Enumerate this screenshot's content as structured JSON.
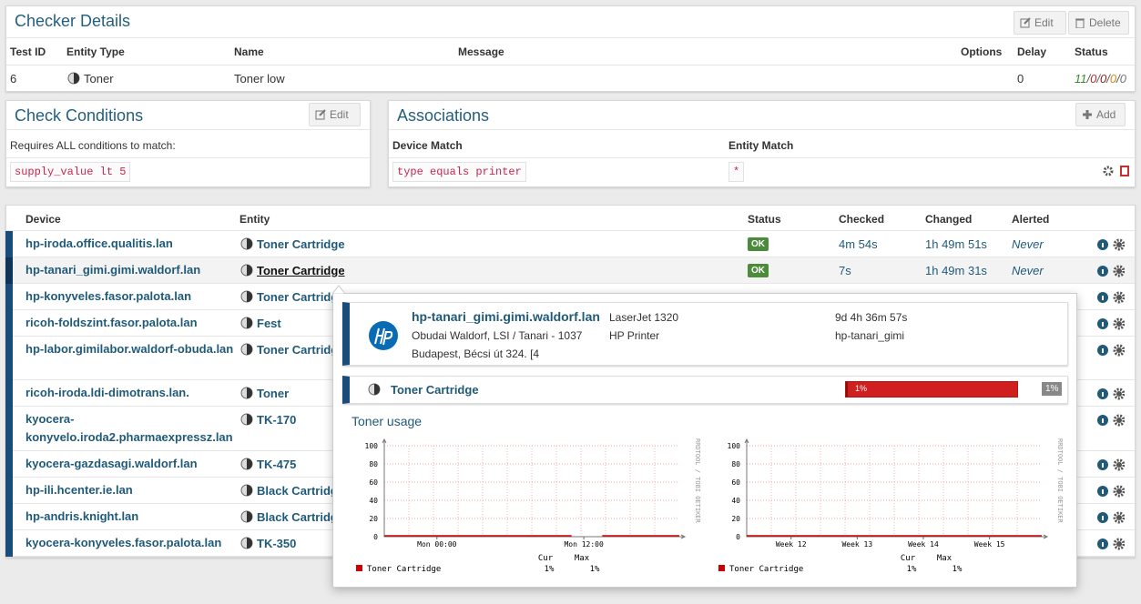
{
  "checker": {
    "title": "Checker Details",
    "buttons": [
      "Edit",
      "Delete"
    ],
    "headers": [
      "Test ID",
      "Entity Type",
      "Name",
      "Message",
      "Options",
      "Delay",
      "Status"
    ],
    "row": {
      "test_id": "6",
      "entity_type": "Toner",
      "name": "Toner low",
      "delay": "0",
      "status": [
        "11",
        "0",
        "0",
        "0",
        "0"
      ],
      "status_separator": "/",
      "status_colors": [
        "#3a8a2a",
        "#b03030",
        "#8a1f1f",
        "#d08a1a",
        "#777777"
      ]
    }
  },
  "conditions": {
    "title": "Check Conditions",
    "button": "Edit",
    "label": "Requires ALL conditions to match:",
    "items": [
      "supply_value lt 5"
    ]
  },
  "associations": {
    "title": "Associations",
    "button": "Add",
    "headers": [
      "Device Match",
      "Entity Match"
    ],
    "rows": [
      {
        "device": "type equals printer",
        "entity": "*"
      }
    ]
  },
  "devices": {
    "headers": [
      "Device",
      "Entity",
      "Status",
      "Checked",
      "Changed",
      "Alerted"
    ],
    "rows": [
      {
        "device": "hp-iroda.office.qualitis.lan",
        "entity": "Toner Cartridge",
        "status": "OK",
        "checked": "4m 54s",
        "changed": "1h 49m 51s",
        "alerted": "Never"
      },
      {
        "device": "hp-tanari_gimi.gimi.waldorf.lan",
        "entity": "Toner Cartridge",
        "status": "OK",
        "checked": "7s",
        "changed": "1h 49m 31s",
        "alerted": "Never"
      },
      {
        "device": "hp-konyveles.fasor.palota.lan",
        "entity": "Toner Cartridge"
      },
      {
        "device": "ricoh-foldszint.fasor.palota.lan",
        "entity": "Fest"
      },
      {
        "device": "hp-labor.gimilabor.waldorf-obuda.lan",
        "entity": "Toner Cartridge"
      },
      {
        "device": "ricoh-iroda.ldi-dimotrans.lan.",
        "entity": "Toner"
      },
      {
        "device": "kyocera-konyvelo.iroda2.pharmaexpressz.lan",
        "entity": "TK-170"
      },
      {
        "device": "kyocera-gazdasagi.waldorf.lan",
        "entity": "TK-475"
      },
      {
        "device": "hp-ili.hcenter.ie.lan",
        "entity": "Black Cartridge"
      },
      {
        "device": "hp-andris.knight.lan",
        "entity": "Black Cartridge"
      },
      {
        "device": "kyocera-konyveles.fasor.palota.lan",
        "entity": "TK-350"
      }
    ]
  },
  "popup": {
    "device": "hp-tanari_gimi.gimi.waldorf.lan",
    "location": "Obudai Waldorf, LSI / Tanari - 1037",
    "address": "Budapest, Bécsi út 324. [4",
    "model": "LaserJet 1320",
    "device_type": "HP Printer",
    "uptime": "9d 4h 36m 57s",
    "sysname": "hp-tanari_gimi",
    "entity": "Toner Cartridge",
    "bar": {
      "values": [
        1
      ],
      "value_labels": [
        "1%"
      ]
    },
    "badge": "1%",
    "graph_title": "Toner usage",
    "graphs": [
      {
        "ylim": [
          0,
          100
        ],
        "yticks": [
          0,
          20,
          40,
          60,
          80,
          100
        ],
        "xlim": [
          -4.3,
          19.8
        ],
        "xticks": [
          {
            "value": 0,
            "label": "Mon 00:00"
          },
          {
            "value": 12,
            "label": "Mon 12:00"
          }
        ],
        "side_label": "RRDTOOL / TOBI OETIKER",
        "series": {
          "name": "Toner Cartridge",
          "color": "#cc0000",
          "x": [
            -4.3,
            11,
            11.5,
            13.5,
            19.8
          ],
          "values": [
            1,
            1,
            null,
            1,
            1
          ]
        },
        "stats": {
          "headers": [
            "Cur",
            "Max"
          ],
          "values": [
            1,
            1
          ],
          "value_labels": [
            "1%",
            "1%"
          ]
        }
      },
      {
        "ylim": [
          0,
          100
        ],
        "yticks": [
          0,
          20,
          40,
          60,
          80,
          100
        ],
        "xlim": [
          11.33,
          15.79
        ],
        "xticks": [
          {
            "value": 12,
            "label": "Week 12"
          },
          {
            "value": 13,
            "label": "Week 13"
          },
          {
            "value": 14,
            "label": "Week 14"
          },
          {
            "value": 15,
            "label": "Week 15"
          }
        ],
        "side_label": "RRDTOOL / TOBI OETIKER",
        "series": {
          "name": "Toner Cartridge",
          "color": "#cc0000",
          "x": [
            11.33,
            15.79
          ],
          "values": [
            1,
            1
          ]
        },
        "stats": {
          "headers": [
            "Cur",
            "Max"
          ],
          "values": [
            1,
            1
          ],
          "value_labels": [
            "1%",
            "1%"
          ]
        }
      }
    ]
  }
}
